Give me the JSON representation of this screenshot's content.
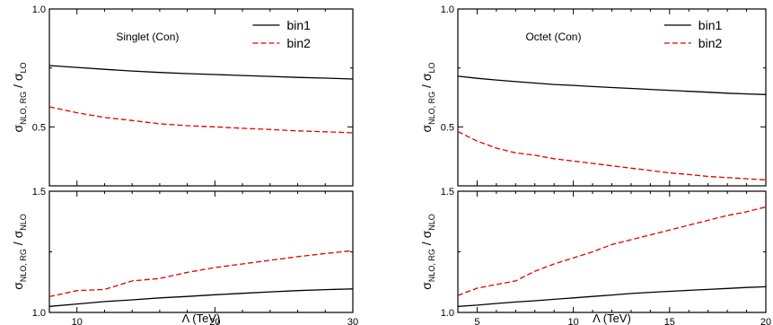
{
  "chart_data": [
    {
      "type": "line",
      "panel_label": "Singlet  (Con)",
      "ylabel": "σ_{NLO, RG} / σ_{LO}",
      "xlim": [
        8,
        30
      ],
      "ylim": [
        0.25,
        1.0
      ],
      "yticks": [
        "0.5",
        "1.0"
      ],
      "x": [
        8,
        10,
        12,
        14,
        16,
        18,
        20,
        22,
        24,
        26,
        28,
        30
      ],
      "series": [
        {
          "name": "bin1",
          "color": "#000000",
          "dash": "solid",
          "values": [
            0.76,
            0.752,
            0.744,
            0.737,
            0.731,
            0.726,
            0.722,
            0.718,
            0.714,
            0.71,
            0.707,
            0.703
          ]
        },
        {
          "name": "bin2",
          "color": "#e00000",
          "dash": "dashed",
          "values": [
            0.585,
            0.56,
            0.54,
            0.527,
            0.513,
            0.505,
            0.5,
            0.494,
            0.489,
            0.483,
            0.479,
            0.475
          ]
        }
      ],
      "legend": "top-right"
    },
    {
      "type": "line",
      "panel_label": "Octet  (Con)",
      "ylabel": "σ_{NLO, RG} / σ_{LO}",
      "xlim": [
        4,
        20
      ],
      "ylim": [
        0.25,
        1.0
      ],
      "yticks": [
        "0.5",
        "1.0"
      ],
      "x": [
        4,
        5,
        6,
        7,
        8,
        9,
        10,
        11,
        12,
        13,
        14,
        15,
        16,
        17,
        18,
        19,
        20
      ],
      "series": [
        {
          "name": "bin1",
          "color": "#000000",
          "dash": "solid",
          "values": [
            0.715,
            0.706,
            0.699,
            0.692,
            0.686,
            0.68,
            0.676,
            0.671,
            0.667,
            0.663,
            0.659,
            0.655,
            0.651,
            0.647,
            0.643,
            0.64,
            0.637
          ]
        },
        {
          "name": "bin2",
          "color": "#e00000",
          "dash": "dashed",
          "values": [
            0.48,
            0.44,
            0.41,
            0.39,
            0.38,
            0.365,
            0.355,
            0.345,
            0.335,
            0.325,
            0.315,
            0.305,
            0.298,
            0.29,
            0.285,
            0.28,
            0.275
          ]
        }
      ],
      "legend": "top-right"
    },
    {
      "type": "line",
      "ylabel": "σ_{NLO, RG} / σ_{NLO}",
      "xlabel": "Λ (TeV)",
      "xlim": [
        8,
        30
      ],
      "ylim": [
        1.0,
        1.5
      ],
      "xticks": [
        "10",
        "20",
        "30"
      ],
      "yticks": [
        "1.0",
        "1.5"
      ],
      "x": [
        8,
        10,
        12,
        14,
        16,
        18,
        20,
        22,
        24,
        26,
        28,
        30
      ],
      "series": [
        {
          "name": "bin1",
          "color": "#000000",
          "dash": "solid",
          "values": [
            1.025,
            1.035,
            1.045,
            1.052,
            1.06,
            1.066,
            1.073,
            1.079,
            1.085,
            1.09,
            1.094,
            1.097
          ]
        },
        {
          "name": "bin2",
          "color": "#e00000",
          "dash": "dashed",
          "values": [
            1.065,
            1.09,
            1.095,
            1.13,
            1.14,
            1.165,
            1.185,
            1.2,
            1.215,
            1.23,
            1.243,
            1.255
          ]
        }
      ]
    },
    {
      "type": "line",
      "ylabel": "σ_{NLO, RG} / σ_{NLO}",
      "xlabel": "Λ (TeV)",
      "xlim": [
        4,
        20
      ],
      "ylim": [
        1.0,
        1.5
      ],
      "xticks": [
        "5",
        "10",
        "15",
        "20"
      ],
      "yticks": [
        "1.0",
        "1.5"
      ],
      "x": [
        4,
        5,
        6,
        7,
        8,
        9,
        10,
        11,
        12,
        13,
        14,
        15,
        16,
        17,
        18,
        19,
        20
      ],
      "series": [
        {
          "name": "bin1",
          "color": "#000000",
          "dash": "solid",
          "values": [
            1.025,
            1.03,
            1.037,
            1.043,
            1.048,
            1.054,
            1.06,
            1.066,
            1.072,
            1.078,
            1.083,
            1.087,
            1.091,
            1.095,
            1.099,
            1.103,
            1.106
          ]
        },
        {
          "name": "bin2",
          "color": "#e00000",
          "dash": "dashed",
          "values": [
            1.07,
            1.1,
            1.115,
            1.13,
            1.17,
            1.2,
            1.225,
            1.25,
            1.28,
            1.3,
            1.32,
            1.34,
            1.36,
            1.38,
            1.4,
            1.415,
            1.435
          ]
        }
      ]
    }
  ]
}
